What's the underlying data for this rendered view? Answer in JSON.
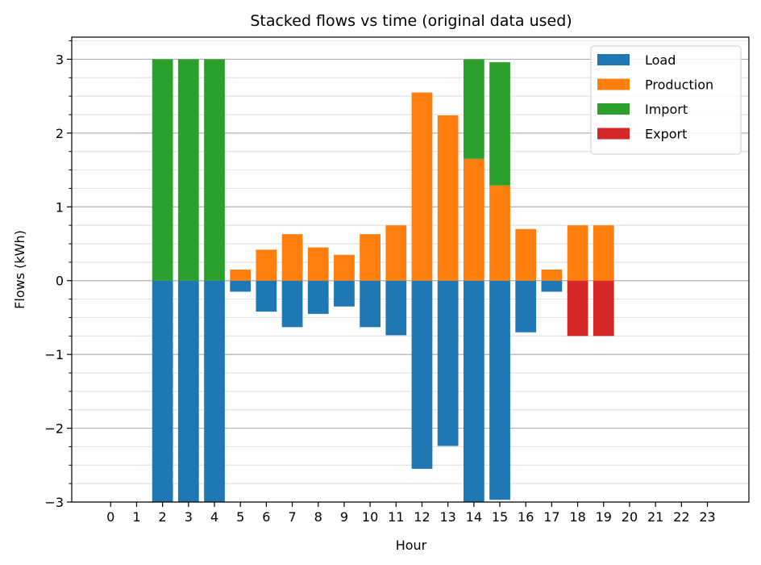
{
  "chart_data": {
    "type": "bar",
    "stacked": true,
    "title": "Stacked flows vs time (original data used)",
    "xlabel": "Hour",
    "ylabel": "Flows (kWh)",
    "ylim": [
      -3,
      3.3
    ],
    "yticks": [
      -3,
      -2,
      -1,
      0,
      1,
      2,
      3
    ],
    "yticklabels": [
      "−3",
      "−2",
      "−1",
      "0",
      "1",
      "2",
      "3"
    ],
    "yminor_step": 0.25,
    "grid": true,
    "legend_position": "upper-right",
    "categories": [
      "0",
      "1",
      "2",
      "3",
      "4",
      "5",
      "6",
      "7",
      "8",
      "9",
      "10",
      "11",
      "12",
      "13",
      "14",
      "15",
      "16",
      "17",
      "18",
      "19",
      "20",
      "21",
      "22",
      "23"
    ],
    "series": [
      {
        "name": "Load",
        "color": "#1f77b4",
        "values": [
          0,
          0,
          -3,
          -3,
          -3,
          -0.15,
          -0.42,
          -0.63,
          -0.45,
          -0.35,
          -0.63,
          -0.74,
          -2.55,
          -2.24,
          -3,
          -2.97,
          -0.7,
          -0.15,
          0,
          0,
          0,
          0,
          0,
          0
        ]
      },
      {
        "name": "Production",
        "color": "#ff7f0e",
        "values": [
          0,
          0,
          0,
          0,
          0,
          0.15,
          0.42,
          0.63,
          0.45,
          0.35,
          0.63,
          0.75,
          2.55,
          2.24,
          1.65,
          1.29,
          0.7,
          0.15,
          0.75,
          0.75,
          0,
          0,
          0,
          0
        ]
      },
      {
        "name": "Import",
        "color": "#2ca02c",
        "values": [
          0,
          0,
          3,
          3,
          3,
          0,
          0,
          0,
          0,
          0,
          0,
          0,
          0,
          0,
          1.35,
          1.67,
          0,
          0,
          0,
          0,
          0,
          0,
          0,
          0
        ]
      },
      {
        "name": "Export",
        "color": "#d62728",
        "values": [
          0,
          0,
          0,
          0,
          0,
          0,
          0,
          0,
          0,
          0,
          0,
          0,
          0,
          0,
          0,
          0,
          0,
          0,
          -0.75,
          -0.75,
          0,
          0,
          0,
          0
        ]
      }
    ]
  }
}
